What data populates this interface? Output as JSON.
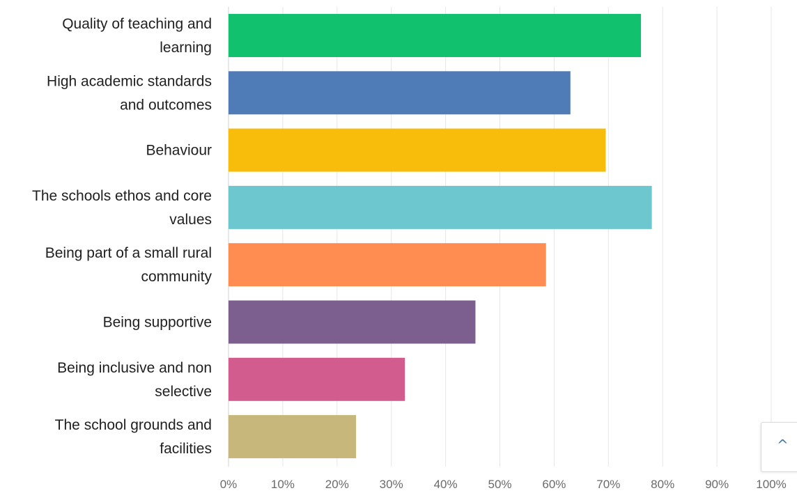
{
  "chart_data": {
    "type": "bar",
    "orientation": "horizontal",
    "categories": [
      [
        "Quality of teaching and",
        "learning"
      ],
      [
        "High academic standards",
        "and outcomes"
      ],
      [
        "Behaviour"
      ],
      [
        "The schools ethos and core",
        "values"
      ],
      [
        "Being part of a small rural",
        "community"
      ],
      [
        "Being supportive"
      ],
      [
        "Being inclusive and non",
        "selective"
      ],
      [
        "The school grounds and",
        "facilities"
      ]
    ],
    "values": [
      76,
      63,
      69.5,
      78,
      58.5,
      45.5,
      32.5,
      23.5
    ],
    "colors": [
      "#12c16e",
      "#4f7bb7",
      "#f7bd0a",
      "#6cc7cf",
      "#ff8d52",
      "#7c5e8f",
      "#d15c8d",
      "#c8b77a"
    ],
    "x_ticks": [
      "0%",
      "10%",
      "20%",
      "30%",
      "40%",
      "50%",
      "60%",
      "70%",
      "80%",
      "90%",
      "100%"
    ],
    "xlim": [
      0,
      100
    ],
    "unit": "%",
    "grid": true,
    "title": "",
    "xlabel": "",
    "ylabel": ""
  },
  "ui": {
    "scroll_top_icon": "chevron-up-icon",
    "scroll_top_glyph": "^",
    "accent": "#3f79a8"
  }
}
